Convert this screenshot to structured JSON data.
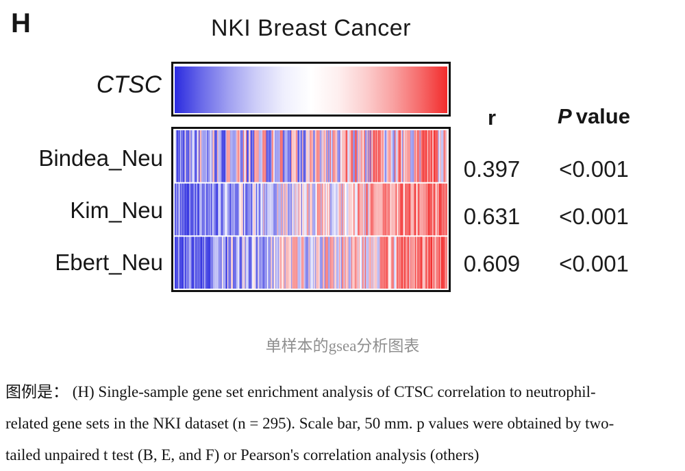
{
  "figure": {
    "panel_label": "H",
    "title": "NKI Breast Cancer",
    "gene_label": "CTSC",
    "caption": "单样本的gsea分析图表"
  },
  "stats": {
    "header_r": "r",
    "header_p_italic": "P",
    "header_p_rest": "value"
  },
  "chart_data": {
    "type": "heatmap",
    "title": "NKI Breast Cancer",
    "gene": "CTSC",
    "n_samples": 295,
    "colormap": {
      "low": "#2b2bdf",
      "mid": "#ffffff",
      "high": "#f22c2c"
    },
    "legend_position": "right",
    "rows": [
      {
        "label": "Bindea_Neu",
        "r": "0.397",
        "p": "<0.001"
      },
      {
        "label": "Kim_Neu",
        "r": "0.631",
        "p": "<0.001"
      },
      {
        "label": "Ebert_Neu",
        "r": "0.609",
        "p": "<0.001"
      }
    ]
  },
  "legend": {
    "lines": [
      "图例是： (H) Single-sample gene set enrichment analysis of CTSC correlation to neutrophil-",
      "related gene sets in the NKI dataset (n = 295). Scale bar, 50 mm. p values were obtained by two-",
      "tailed unpaired t test (B, E, and F) or Pearson's correlation analysis (others)"
    ]
  }
}
